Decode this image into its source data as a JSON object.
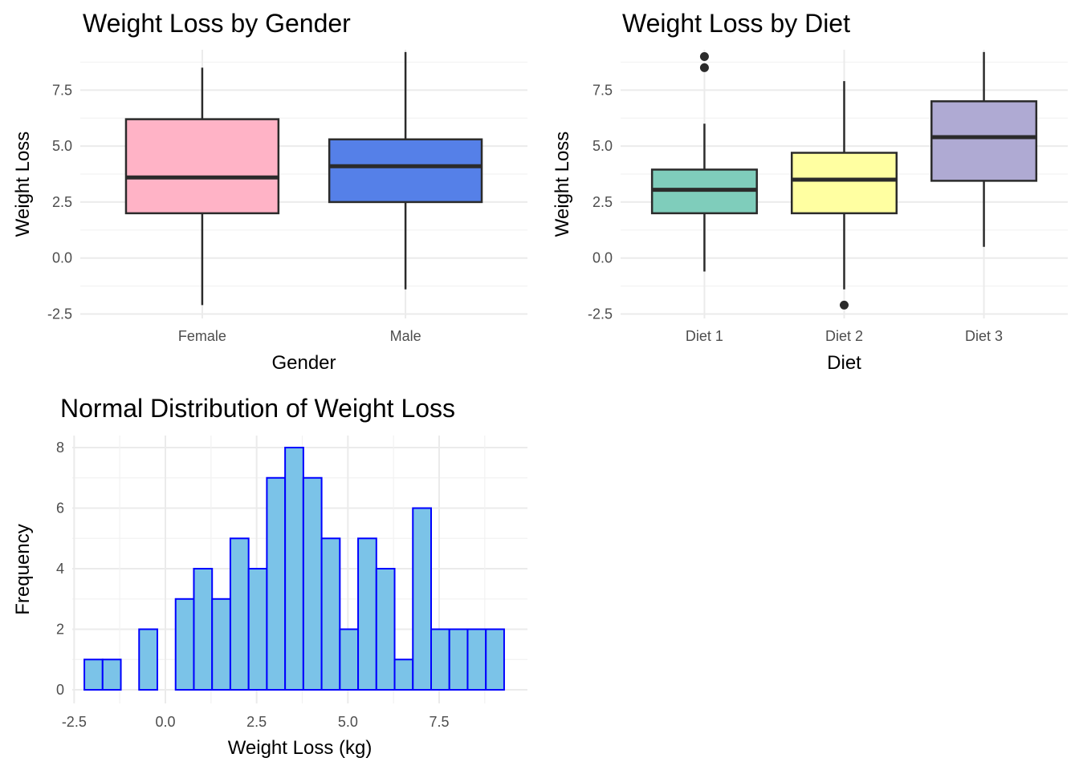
{
  "chart_data": [
    {
      "type": "box",
      "title": "Weight Loss by Gender",
      "xlabel": "Gender",
      "ylabel": "Weight Loss",
      "ylim": [
        -2.5,
        9.5
      ],
      "yticks": [
        "-2.5",
        "0.0",
        "2.5",
        "5.0",
        "7.5"
      ],
      "grid": true,
      "legend": "none",
      "categories": [
        "Female",
        "Male"
      ],
      "boxes": [
        {
          "category": "Female",
          "min": -2.1,
          "q1": 2.0,
          "median": 3.6,
          "q3": 6.2,
          "max": 8.5,
          "outliers": [],
          "color": "#FFB3C6"
        },
        {
          "category": "Male",
          "min": -1.4,
          "q1": 2.5,
          "median": 4.1,
          "q3": 5.3,
          "max": 9.2,
          "outliers": [],
          "color": "#5580E8"
        }
      ]
    },
    {
      "type": "box",
      "title": "Weight Loss by Diet",
      "xlabel": "Diet",
      "ylabel": "Weight Loss",
      "ylim": [
        -2.5,
        9.5
      ],
      "yticks": [
        "-2.5",
        "0.0",
        "2.5",
        "5.0",
        "7.5"
      ],
      "grid": true,
      "legend": "none",
      "categories": [
        "Diet 1",
        "Diet 2",
        "Diet 3"
      ],
      "boxes": [
        {
          "category": "Diet 1",
          "min": -0.6,
          "q1": 2.0,
          "median": 3.05,
          "q3": 3.95,
          "max": 6.0,
          "outliers": [
            9.0,
            8.5
          ],
          "color": "#7FCDBB"
        },
        {
          "category": "Diet 2",
          "min": -1.4,
          "q1": 2.0,
          "median": 3.5,
          "q3": 4.7,
          "max": 7.9,
          "outliers": [
            -2.1
          ],
          "color": "#FFFFA1"
        },
        {
          "category": "Diet 3",
          "min": 0.5,
          "q1": 3.45,
          "median": 5.4,
          "q3": 7.0,
          "max": 9.2,
          "outliers": [],
          "color": "#AFAAD3"
        }
      ]
    },
    {
      "type": "histogram",
      "title": "Normal Distribution of Weight Loss",
      "xlabel": "Weight Loss (kg)",
      "ylabel": "Frequency",
      "xlim": [
        -2.5,
        9.5
      ],
      "ylim": [
        0,
        8.4
      ],
      "xticks": [
        "-2.5",
        "0.0",
        "2.5",
        "5.0",
        "7.5"
      ],
      "yticks": [
        "0",
        "2",
        "4",
        "6",
        "8"
      ],
      "grid": true,
      "legend": "none",
      "bin_start": -2.22,
      "bin_width": 0.5,
      "counts": [
        1,
        1,
        0,
        2,
        0,
        3,
        4,
        3,
        5,
        4,
        7,
        8,
        7,
        5,
        2,
        5,
        4,
        1,
        6,
        2,
        2,
        2,
        2
      ],
      "fill": "#7BC3E8",
      "stroke": "#0000FF"
    }
  ]
}
